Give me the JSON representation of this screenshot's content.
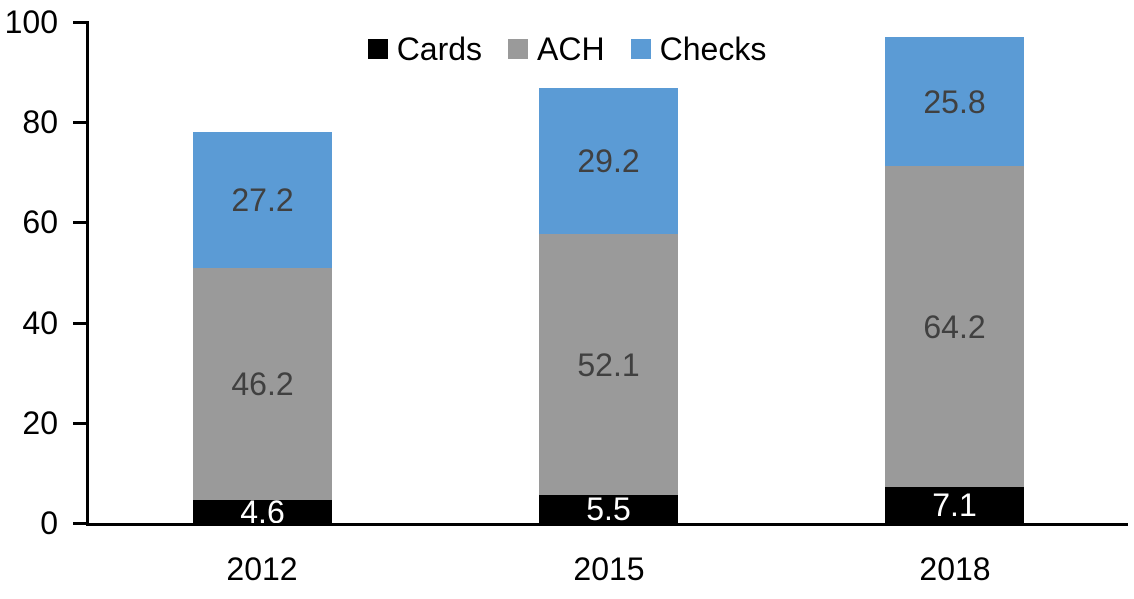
{
  "chart_data": {
    "type": "bar",
    "stacked": true,
    "title": "",
    "xlabel": "",
    "ylabel": "",
    "categories": [
      "2012",
      "2015",
      "2018"
    ],
    "series": [
      {
        "name": "Cards",
        "color": "#000000",
        "label_color": "#FFFFFF",
        "values": [
          4.6,
          5.5,
          7.1
        ]
      },
      {
        "name": "ACH",
        "color": "#9A9A9A",
        "label_color": "#404040",
        "values": [
          46.2,
          52.1,
          64.2
        ]
      },
      {
        "name": "Checks",
        "color": "#5B9BD5",
        "label_color": "#404040",
        "values": [
          27.2,
          29.2,
          25.8
        ]
      }
    ],
    "data_labels": true,
    "label_format": "1-decimal",
    "ylim": [
      0,
      100
    ],
    "yticks": [
      "0",
      "20",
      "40",
      "60",
      "80",
      "100"
    ],
    "grid": false,
    "legend_position": "top-center",
    "axis_color": "#000000",
    "background_color": "#FFFFFF"
  }
}
